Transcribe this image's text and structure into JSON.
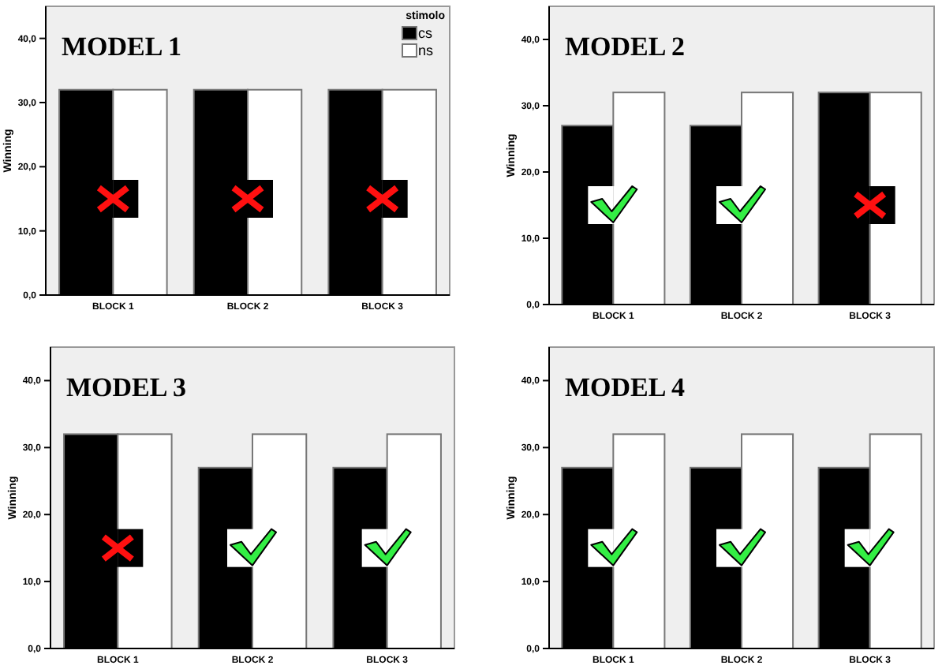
{
  "chart_data": [
    {
      "type": "bar",
      "title": "MODEL 1",
      "ylabel": "Winning",
      "legend_title": "stimolo",
      "legend": "top right",
      "categories": [
        "BLOCK 1",
        "BLOCK 2",
        "BLOCK 3"
      ],
      "ylim": [
        0,
        45
      ],
      "yticks": [
        {
          "value": 0,
          "label": "0,0"
        },
        {
          "value": 10,
          "label": "10,0"
        },
        {
          "value": 20,
          "label": "20,0"
        },
        {
          "value": 30,
          "label": "30,0"
        },
        {
          "value": 40,
          "label": "40,0"
        }
      ],
      "grid": false,
      "series": [
        {
          "name": "cs",
          "color": "#000000",
          "values": [
            32,
            32,
            32
          ]
        },
        {
          "name": "ns",
          "color": "#ffffff",
          "values": [
            32,
            32,
            32
          ]
        }
      ]
    },
    {
      "type": "bar",
      "title": "MODEL 2",
      "ylabel": "Winning",
      "legend": false,
      "categories": [
        "BLOCK 1",
        "BLOCK 2",
        "BLOCK 3"
      ],
      "ylim": [
        0,
        45
      ],
      "yticks": [
        {
          "value": 0,
          "label": "0,0"
        },
        {
          "value": 10,
          "label": "10,0"
        },
        {
          "value": 20,
          "label": "20,0"
        },
        {
          "value": 30,
          "label": "30,0"
        },
        {
          "value": 40,
          "label": "40,0"
        }
      ],
      "grid": false,
      "series": [
        {
          "color": "#000000",
          "values": [
            27,
            27,
            32
          ]
        },
        {
          "color": "#ffffff",
          "values": [
            32,
            32,
            32
          ]
        }
      ]
    },
    {
      "type": "bar",
      "title": "MODEL 3",
      "ylabel": "Winning",
      "legend": false,
      "categories": [
        "BLOCK 1",
        "BLOCK 2",
        "BLOCK 3"
      ],
      "ylim": [
        0,
        45
      ],
      "yticks": [
        {
          "value": 0,
          "label": "0,0"
        },
        {
          "value": 10,
          "label": "10,0"
        },
        {
          "value": 20,
          "label": "20,0"
        },
        {
          "value": 30,
          "label": "30,0"
        },
        {
          "value": 40,
          "label": "40,0"
        }
      ],
      "grid": false,
      "series": [
        {
          "color": "#000000",
          "values": [
            32,
            27,
            27
          ]
        },
        {
          "color": "#ffffff",
          "values": [
            32,
            32,
            32
          ]
        }
      ]
    },
    {
      "type": "bar",
      "title": "MODEL 4",
      "ylabel": "Winning",
      "legend": false,
      "categories": [
        "BLOCK 1",
        "BLOCK 2",
        "BLOCK 3"
      ],
      "ylim": [
        0,
        45
      ],
      "yticks": [
        {
          "value": 0,
          "label": "0,0"
        },
        {
          "value": 10,
          "label": "10,0"
        },
        {
          "value": 20,
          "label": "20,0"
        },
        {
          "value": 30,
          "label": "30,0"
        },
        {
          "value": 40,
          "label": "40,0"
        }
      ],
      "grid": false,
      "series": [
        {
          "color": "#000000",
          "values": [
            27,
            27,
            27
          ]
        },
        {
          "color": "#ffffff",
          "values": [
            32,
            32,
            32
          ]
        }
      ]
    }
  ]
}
